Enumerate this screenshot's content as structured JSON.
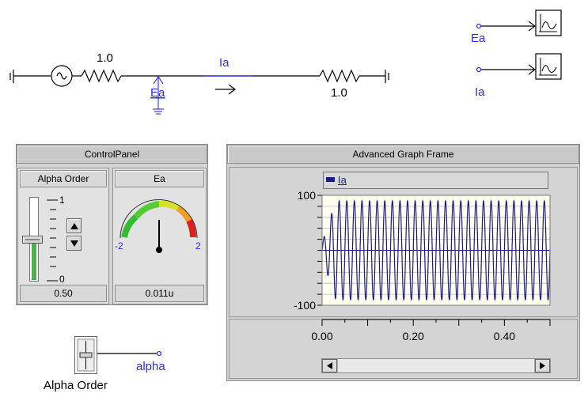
{
  "circuit": {
    "resistor_left_value": "1.0",
    "resistor_right_value": "1.0",
    "current_label": "Ia",
    "node_label": "Ea",
    "outputs": [
      {
        "label": "Ea"
      },
      {
        "label": "Ia"
      }
    ]
  },
  "control_panel": {
    "title": "ControlPanel",
    "slider": {
      "header": "Alpha Order",
      "max_label": "1",
      "min_label": "0",
      "value": "0.50",
      "level_fraction": 0.5
    },
    "meter": {
      "header": "Ea",
      "min_label": "-2",
      "max_label": "2",
      "value": "0.011u"
    }
  },
  "slider_component": {
    "name": "Alpha Order",
    "output_label": "alpha"
  },
  "graph_frame": {
    "title": "Advanced Graph Frame",
    "legend_label": "Ia",
    "colors": {
      "trace": "#1a1a8c",
      "plot_bg": "#fffff0"
    },
    "chart_data": {
      "type": "line",
      "series": [
        {
          "name": "Ia"
        }
      ],
      "ylim": [
        -100,
        100
      ],
      "y_ticks": [
        "100",
        "-100"
      ],
      "xlim": [
        0.0,
        0.5
      ],
      "x_ticks": [
        "0.00",
        "0.20",
        "0.40"
      ],
      "signal": {
        "frequency_hz": 60,
        "amplitude_peak": 90
      }
    }
  }
}
